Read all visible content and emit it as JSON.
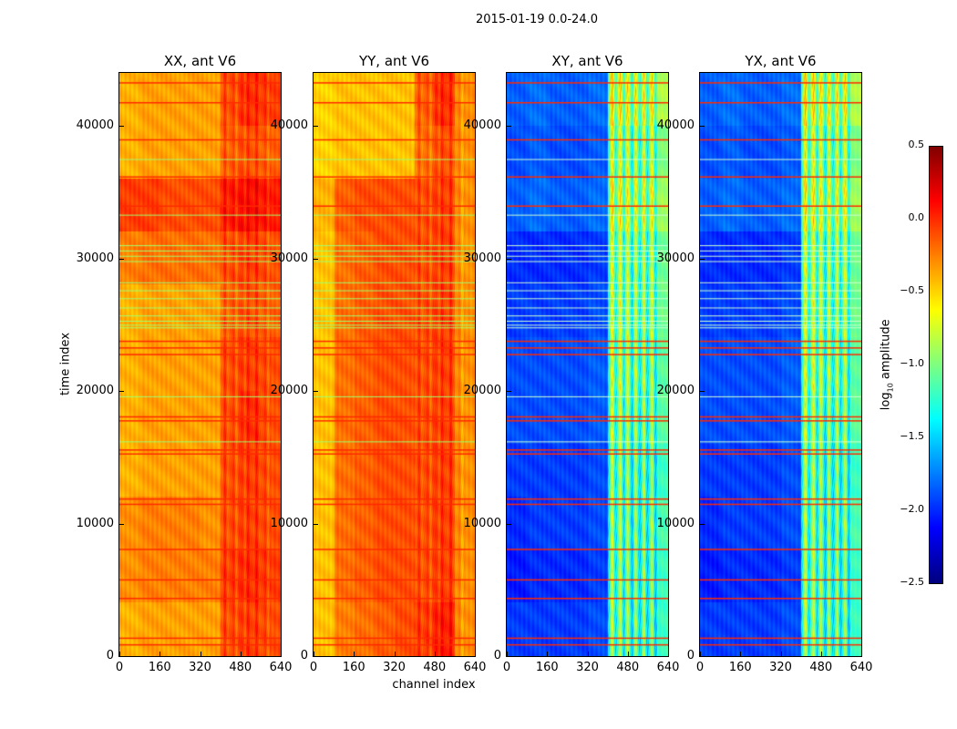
{
  "chart_data": {
    "type": "heatmap",
    "title": "2015-01-19 0.0-24.0",
    "xlabel": "channel index",
    "ylabel": "time index",
    "xlim": [
      0,
      640
    ],
    "ylim": [
      0,
      44000
    ],
    "xticks": [
      0,
      160,
      320,
      480,
      640
    ],
    "yticks": [
      0,
      10000,
      20000,
      30000,
      40000
    ],
    "colormap": "jet",
    "colorbar": {
      "label_prefix": "log",
      "label_sub": "10",
      "label_suffix": " amplitude",
      "range": [
        -2.5,
        0.5
      ],
      "ticks": [
        "0.5",
        "0.0",
        "−0.5",
        "−1.0",
        "−1.5",
        "−2.0",
        "−2.5"
      ],
      "tick_values": [
        0.5,
        0.0,
        -0.5,
        -1.0,
        -1.5,
        -2.0,
        -2.5
      ]
    },
    "grid_note": "values are log10 amplitude, coarse bins of 4000 time x 80 channels, rows from time 0 upward",
    "panels": [
      {
        "title": "XX, ant V6",
        "values": [
          [
            -0.4,
            -0.35,
            -0.35,
            -0.35,
            -0.35,
            -0.1,
            -0.05,
            -0.1
          ],
          [
            -0.3,
            -0.25,
            -0.25,
            -0.25,
            -0.25,
            -0.05,
            0.0,
            -0.05
          ],
          [
            -0.3,
            -0.25,
            -0.25,
            -0.25,
            -0.3,
            -0.1,
            -0.05,
            -0.1
          ],
          [
            -0.4,
            -0.35,
            -0.35,
            -0.35,
            -0.35,
            -0.1,
            -0.05,
            -0.1
          ],
          [
            -0.4,
            -0.35,
            -0.35,
            -0.35,
            -0.35,
            -0.1,
            0.0,
            -0.1
          ],
          [
            -0.4,
            -0.35,
            -0.35,
            -0.35,
            -0.35,
            -0.1,
            -0.05,
            -0.1
          ],
          [
            -0.4,
            -0.35,
            -0.35,
            -0.35,
            -0.35,
            -0.15,
            -0.1,
            -0.15
          ],
          [
            -0.25,
            -0.2,
            -0.2,
            -0.2,
            -0.2,
            -0.1,
            -0.05,
            -0.1
          ],
          [
            -0.05,
            -0.05,
            -0.1,
            -0.1,
            -0.1,
            0.05,
            0.1,
            0.05
          ],
          [
            -0.4,
            -0.35,
            -0.35,
            -0.35,
            -0.35,
            -0.15,
            -0.1,
            -0.15
          ],
          [
            -0.4,
            -0.35,
            -0.35,
            -0.35,
            -0.35,
            -0.1,
            0.0,
            -0.05
          ]
        ]
      },
      {
        "title": "YY, ant V6",
        "values": [
          [
            -0.45,
            -0.25,
            -0.2,
            -0.15,
            -0.1,
            -0.05,
            0.05,
            -0.3
          ],
          [
            -0.45,
            -0.2,
            -0.15,
            -0.1,
            -0.1,
            -0.1,
            -0.05,
            -0.3
          ],
          [
            -0.45,
            -0.2,
            -0.15,
            -0.1,
            -0.1,
            -0.1,
            -0.05,
            -0.3
          ],
          [
            -0.45,
            -0.2,
            -0.15,
            -0.1,
            -0.1,
            -0.1,
            -0.05,
            -0.3
          ],
          [
            -0.45,
            -0.2,
            -0.15,
            -0.1,
            -0.1,
            -0.1,
            -0.05,
            -0.3
          ],
          [
            -0.45,
            -0.2,
            -0.15,
            -0.1,
            -0.1,
            -0.1,
            -0.05,
            -0.3
          ],
          [
            -0.45,
            -0.2,
            -0.15,
            -0.1,
            -0.1,
            -0.1,
            -0.05,
            -0.3
          ],
          [
            -0.45,
            -0.2,
            -0.15,
            -0.1,
            -0.1,
            -0.1,
            -0.05,
            -0.3
          ],
          [
            -0.4,
            -0.15,
            -0.1,
            -0.1,
            -0.1,
            -0.1,
            -0.05,
            -0.3
          ],
          [
            -0.5,
            -0.45,
            -0.45,
            -0.45,
            -0.45,
            -0.2,
            -0.1,
            -0.3
          ],
          [
            -0.5,
            -0.45,
            -0.45,
            -0.45,
            -0.45,
            -0.15,
            0.0,
            -0.3
          ]
        ]
      },
      {
        "title": "XY, ant V6",
        "values": [
          [
            -1.95,
            -1.95,
            -1.95,
            -1.95,
            -1.9,
            -1.1,
            -1.2,
            -1.2
          ],
          [
            -2.05,
            -2.0,
            -2.0,
            -2.0,
            -1.95,
            -1.1,
            -1.2,
            -1.2
          ],
          [
            -2.0,
            -1.95,
            -1.95,
            -1.95,
            -1.9,
            -1.1,
            -1.2,
            -1.15
          ],
          [
            -1.95,
            -1.95,
            -1.95,
            -1.95,
            -1.9,
            -1.1,
            -1.2,
            -1.2
          ],
          [
            -1.9,
            -1.9,
            -1.9,
            -1.9,
            -1.85,
            -1.05,
            -1.15,
            -1.1
          ],
          [
            -1.9,
            -1.9,
            -1.9,
            -1.9,
            -1.85,
            -1.0,
            -1.1,
            -1.1
          ],
          [
            -1.95,
            -1.95,
            -1.95,
            -1.95,
            -1.9,
            -1.0,
            -1.1,
            -1.05
          ],
          [
            -2.0,
            -2.0,
            -2.0,
            -2.0,
            -1.95,
            -1.0,
            -1.1,
            -1.05
          ],
          [
            -1.85,
            -1.8,
            -1.85,
            -1.85,
            -1.8,
            -0.85,
            -0.95,
            -0.9
          ],
          [
            -1.9,
            -1.85,
            -1.9,
            -1.9,
            -1.85,
            -0.95,
            -1.05,
            -1.0
          ],
          [
            -1.85,
            -1.8,
            -1.85,
            -1.85,
            -1.8,
            -0.8,
            -0.9,
            -0.85
          ]
        ]
      },
      {
        "title": "YX, ant V6",
        "values": [
          [
            -1.95,
            -1.95,
            -1.95,
            -1.95,
            -1.9,
            -1.1,
            -1.2,
            -1.2
          ],
          [
            -2.05,
            -2.0,
            -2.0,
            -2.0,
            -1.95,
            -1.1,
            -1.2,
            -1.2
          ],
          [
            -2.0,
            -1.95,
            -1.95,
            -1.95,
            -1.9,
            -1.1,
            -1.2,
            -1.15
          ],
          [
            -1.95,
            -1.95,
            -1.95,
            -1.95,
            -1.9,
            -1.1,
            -1.2,
            -1.2
          ],
          [
            -1.9,
            -1.9,
            -1.9,
            -1.9,
            -1.85,
            -1.05,
            -1.15,
            -1.1
          ],
          [
            -1.9,
            -1.9,
            -1.9,
            -1.9,
            -1.85,
            -1.0,
            -1.1,
            -1.1
          ],
          [
            -1.95,
            -1.95,
            -1.95,
            -1.95,
            -1.9,
            -1.0,
            -1.1,
            -1.05
          ],
          [
            -2.0,
            -2.0,
            -2.0,
            -2.0,
            -1.95,
            -1.0,
            -1.1,
            -1.05
          ],
          [
            -1.85,
            -1.8,
            -1.85,
            -1.85,
            -1.8,
            -0.85,
            -0.95,
            -0.9
          ],
          [
            -1.9,
            -1.85,
            -1.9,
            -1.9,
            -1.85,
            -0.95,
            -1.05,
            -1.0
          ],
          [
            -1.85,
            -1.8,
            -1.85,
            -1.85,
            -1.8,
            -0.8,
            -0.9,
            -0.85
          ]
        ]
      }
    ],
    "flag_lines_red": [
      900,
      1400,
      4400,
      5800,
      8100,
      11500,
      11900,
      15300,
      15600,
      17800,
      18100,
      22800,
      23300,
      23800,
      34000,
      36200,
      39000,
      41800,
      43300
    ],
    "flag_lines_green": [
      16200,
      19600,
      24800,
      25000,
      25300,
      25700,
      26300,
      27000,
      27600,
      28200,
      29800,
      30200,
      30600,
      31000,
      33300,
      37500
    ]
  }
}
